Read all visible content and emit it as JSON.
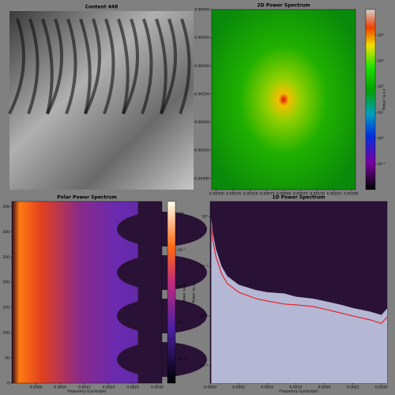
{
  "chart_data": [
    {
      "type": "image",
      "title": "Content 448"
    },
    {
      "type": "spectrum2d",
      "title": "2D Power Spectrum",
      "xlim": [
        -0.0032,
        0.0032
      ],
      "xticks": [
        {
          "value": -0.003,
          "label": "-0.00300"
        },
        {
          "value": -0.00225,
          "label": "-0.00225"
        },
        {
          "value": -0.0015,
          "label": "-0.00150"
        },
        {
          "value": -0.00075,
          "label": "-0.00075"
        },
        {
          "value": 0,
          "label": "0.00000"
        },
        {
          "value": 0.00075,
          "label": "0.00075"
        },
        {
          "value": 0.0015,
          "label": "0.00150"
        },
        {
          "value": 0.00225,
          "label": "0.00225"
        },
        {
          "value": 0.003,
          "label": "0.00300"
        }
      ],
      "ylim": [
        0,
        -0.0032
      ],
      "yticks": [
        {
          "value": -0.003,
          "label": "-0.00300"
        },
        {
          "value": -0.0025,
          "label": "-0.00250"
        },
        {
          "value": -0.002,
          "label": "-0.00200"
        },
        {
          "value": -0.0015,
          "label": "-0.00150"
        },
        {
          "value": -0.001,
          "label": "-0.00100"
        },
        {
          "value": -0.0005,
          "label": "-0.00050"
        },
        {
          "value": 0,
          "label": "0.00000"
        }
      ],
      "colorbar": {
        "lim": [
          0.01,
          100000
        ],
        "label": "Power (a.u.)",
        "ticks": [
          {
            "value": 10000,
            "label": "10⁴"
          },
          {
            "value": 1000,
            "label": "10³"
          },
          {
            "value": 100,
            "label": "10²"
          },
          {
            "value": 10,
            "label": "10¹"
          },
          {
            "value": 1,
            "label": "10⁰"
          },
          {
            "value": 0.1,
            "label": "10⁻¹"
          }
        ]
      }
    },
    {
      "type": "polar",
      "title": "Polar Power Spectrum",
      "xlabel": "Frequency (cycles/px)",
      "ylabel": "Angle (deg)",
      "xlim": [
        0,
        0.0031
      ],
      "xticks": [
        {
          "value": 0.0005,
          "label": "0.0005"
        },
        {
          "value": 0.001,
          "label": "0.0010"
        },
        {
          "value": 0.0015,
          "label": "0.0015"
        },
        {
          "value": 0.002,
          "label": "0.0020"
        },
        {
          "value": 0.0025,
          "label": "0.0025"
        },
        {
          "value": 0.003,
          "label": "0.0030"
        }
      ],
      "ylim": [
        0,
        360
      ],
      "yticks": [
        0,
        50,
        100,
        150,
        200,
        250,
        300,
        350
      ],
      "colorbar": {
        "lim": [
          1e-12,
          1000
        ],
        "label": "Power (a.u.)",
        "ticks": [
          {
            "value": 100,
            "label": "10²"
          },
          {
            "value": 0.1,
            "label": "10⁻¹"
          },
          {
            "value": 0.0001,
            "label": "10⁻⁴"
          },
          {
            "value": 1e-07,
            "label": "10⁻⁷"
          },
          {
            "value": 1e-10,
            "label": "10⁻¹⁰"
          }
        ]
      }
    },
    {
      "type": "line",
      "title": "1D Power Spectrum",
      "xlabel": "Frequency (cycles/px)",
      "ylabel": "Power (a.u.)",
      "log_y": true,
      "color": "#e3262e",
      "fill_color": "#b4b8d4",
      "xlim": [
        0,
        0.0031
      ],
      "xticks": [
        {
          "value": 0,
          "label": "0.0000"
        },
        {
          "value": 0.0005,
          "label": "0.0005"
        },
        {
          "value": 0.001,
          "label": "0.0010"
        },
        {
          "value": 0.0015,
          "label": "0.0015"
        },
        {
          "value": 0.002,
          "label": "0.0020"
        },
        {
          "value": 0.0025,
          "label": "0.0025"
        },
        {
          "value": 0.003,
          "label": "0.0030"
        }
      ],
      "ylim": [
        2e-06,
        40
      ],
      "yticks": [
        {
          "value": 10,
          "label": "10¹"
        },
        {
          "value": 0.1,
          "label": "10⁻¹"
        },
        {
          "value": 0.001,
          "label": "10⁻³"
        },
        {
          "value": 1e-05,
          "label": "10⁻⁵"
        }
      ],
      "x": [
        2e-05,
        5e-05,
        0.0001,
        0.0002,
        0.0003,
        0.0005,
        0.0008,
        0.001,
        0.0013,
        0.0015,
        0.0018,
        0.002,
        0.0023,
        0.0025,
        0.0028,
        0.003,
        0.0031
      ],
      "values": [
        4,
        1,
        0.25,
        0.05,
        0.02,
        0.009,
        0.005,
        0.004,
        0.003,
        0.0028,
        0.0024,
        0.0019,
        0.0013,
        0.001,
        0.0007,
        0.0005,
        0.0009
      ],
      "upper": [
        8,
        2,
        0.5,
        0.1,
        0.04,
        0.018,
        0.011,
        0.009,
        0.008,
        0.006,
        0.005,
        0.004,
        0.0028,
        0.0021,
        0.0015,
        0.0011,
        0.002
      ]
    }
  ]
}
